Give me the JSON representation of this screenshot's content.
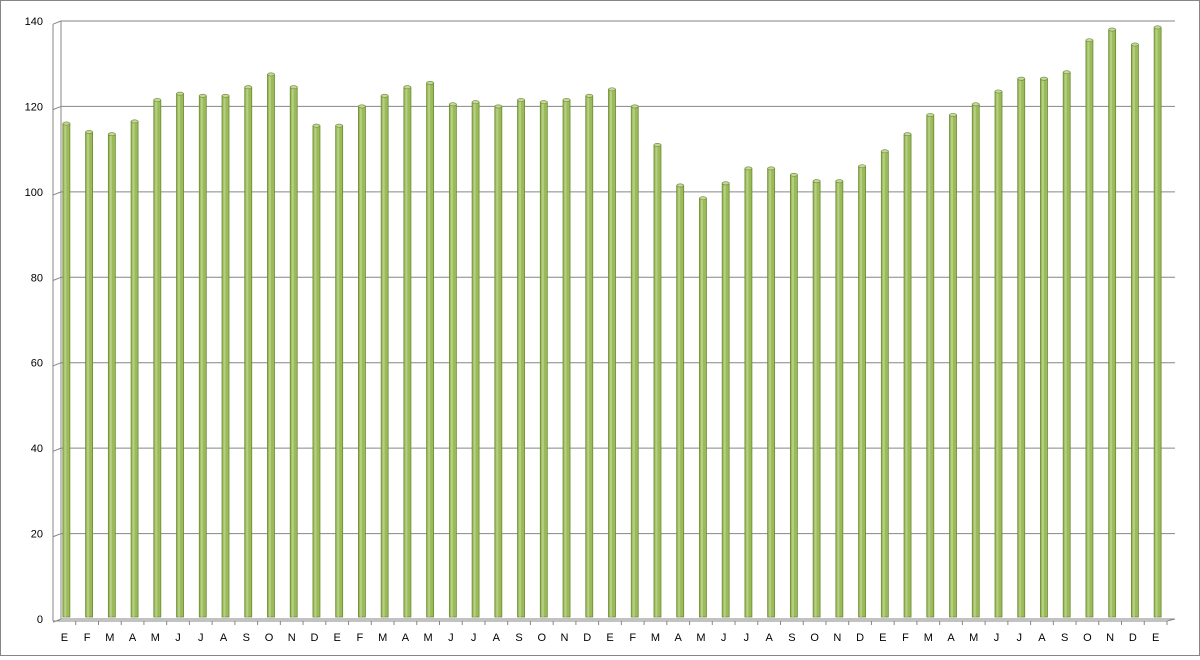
{
  "chart_data": {
    "type": "bar",
    "title": "",
    "xlabel": "",
    "ylabel": "",
    "ylim": [
      0,
      140
    ],
    "yticks": [
      0,
      20,
      40,
      60,
      80,
      100,
      120,
      140
    ],
    "grid": true,
    "legend": "none",
    "colors": {
      "bar_fill": "#9bbb59",
      "bar_edge": "#6a8a32",
      "bar_top": "#c3d69b",
      "grid": "#868686",
      "axis": "#868686"
    },
    "categories": [
      "E",
      "F",
      "M",
      "A",
      "M",
      "J",
      "J",
      "A",
      "S",
      "O",
      "N",
      "D",
      "E",
      "F",
      "M",
      "A",
      "M",
      "J",
      "J",
      "A",
      "S",
      "O",
      "N",
      "D",
      "E",
      "F",
      "M",
      "A",
      "M",
      "J",
      "J",
      "A",
      "S",
      "O",
      "N",
      "D",
      "E",
      "F",
      "M",
      "A",
      "M",
      "J",
      "J",
      "A",
      "S",
      "O",
      "N",
      "D",
      "E"
    ],
    "values": [
      116,
      114,
      113.5,
      116.5,
      121.5,
      123,
      122.5,
      122.5,
      124.5,
      127.5,
      124.5,
      115.5,
      115.5,
      120,
      122.5,
      124.5,
      125.5,
      120.5,
      121,
      120,
      121.5,
      121,
      121.5,
      122.5,
      124,
      120,
      111,
      101.5,
      98.5,
      102,
      105.5,
      105.5,
      104,
      102.5,
      102.5,
      106,
      109.5,
      113.5,
      118,
      118,
      120.5,
      123.5,
      126.5,
      126.5,
      128,
      135.5,
      138,
      134.5,
      138.5
    ]
  }
}
